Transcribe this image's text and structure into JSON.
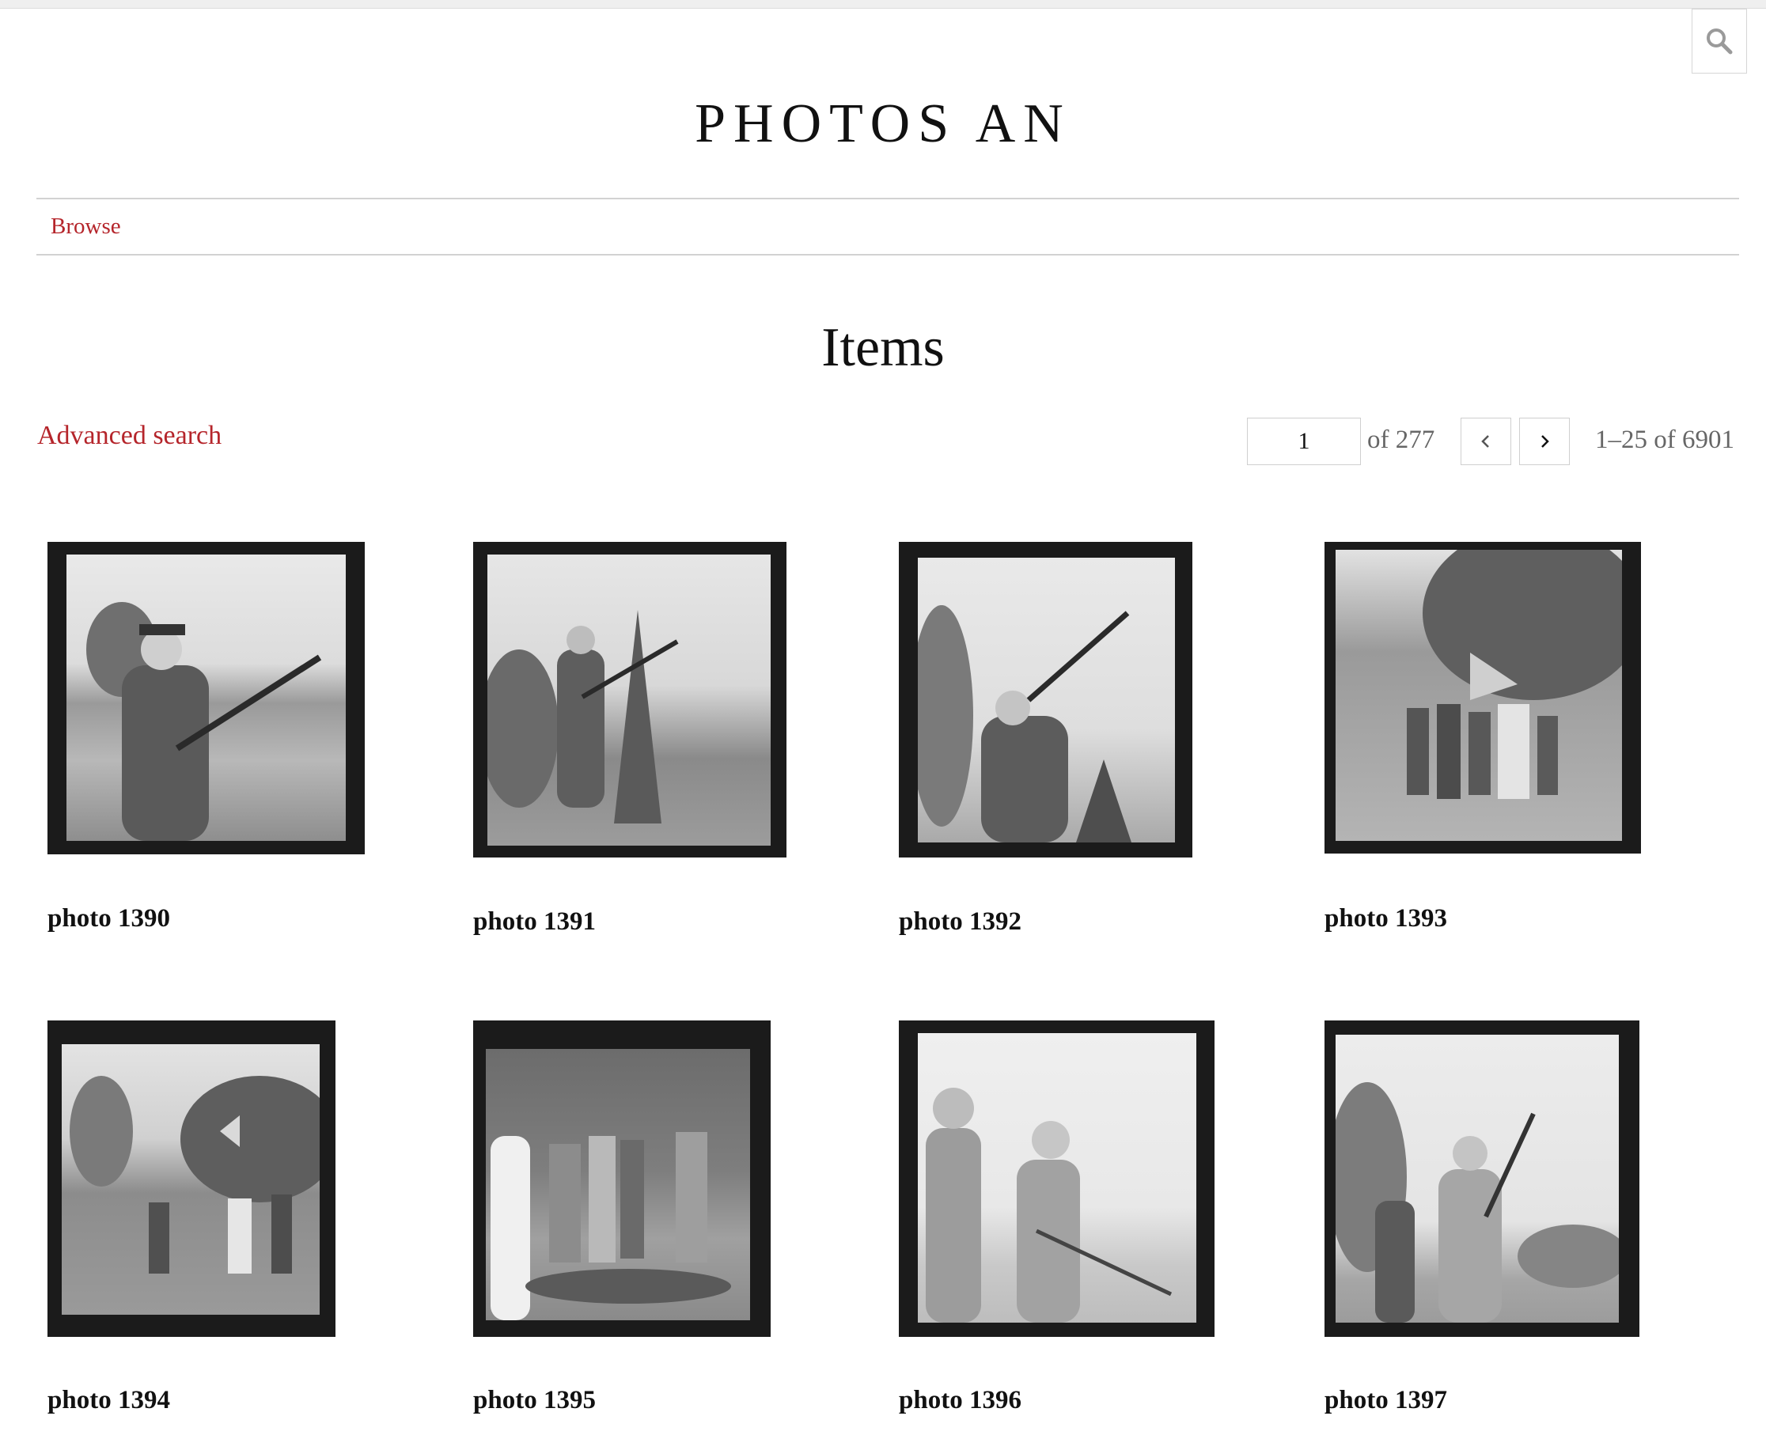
{
  "site": {
    "title": "PHOTOS AN"
  },
  "nav": {
    "browse": "Browse"
  },
  "page": {
    "heading": "Items",
    "advanced_search": "Advanced search"
  },
  "pagination": {
    "current_page": "1",
    "of_total": "of 277",
    "range": "1–25 of 6901"
  },
  "icons": {
    "search": "search-icon",
    "prev": "chevron-left-icon",
    "next": "chevron-right-icon"
  },
  "colors": {
    "link": "#b5252b",
    "text": "#111111",
    "muted": "#666666",
    "border": "#d2d2d2"
  },
  "items": [
    {
      "title": "photo 1390"
    },
    {
      "title": "photo 1391"
    },
    {
      "title": "photo 1392"
    },
    {
      "title": "photo 1393"
    },
    {
      "title": "photo 1394"
    },
    {
      "title": "photo 1395"
    },
    {
      "title": "photo 1396"
    },
    {
      "title": "photo 1397"
    }
  ]
}
